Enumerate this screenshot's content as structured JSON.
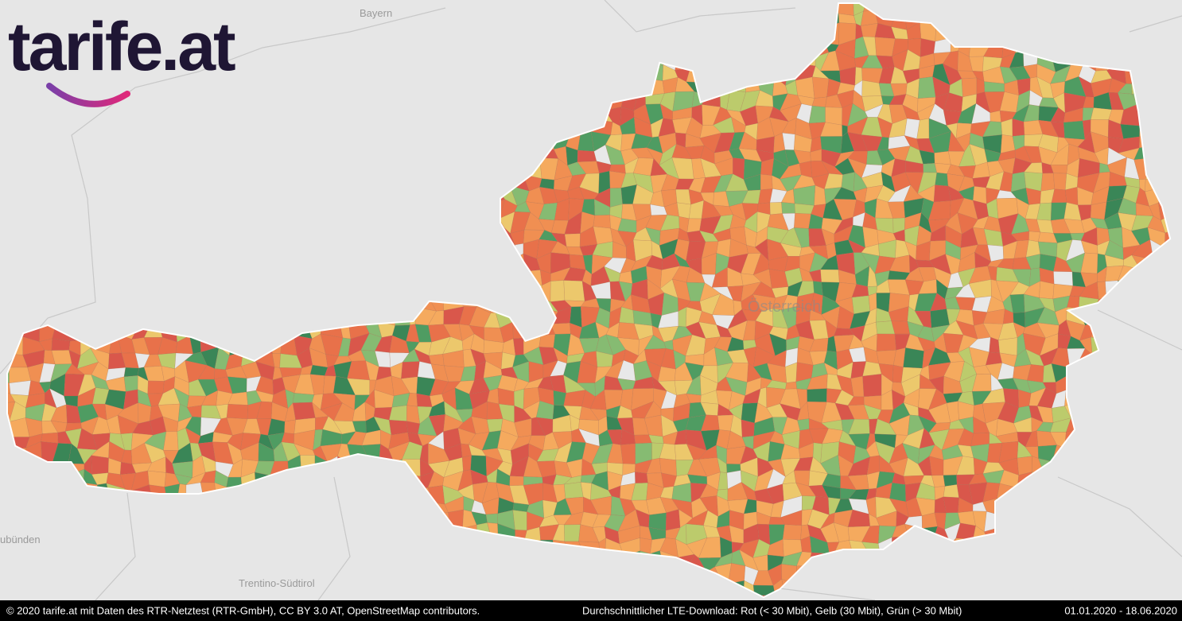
{
  "logo": {
    "text": "tarife.at"
  },
  "map_labels": {
    "bayern": "Bayern",
    "oesterreich": "Österreich",
    "graubuenden": "ubünden",
    "trentino": "Trentino-Südtirol"
  },
  "footer": {
    "credits": "© 2020 tarife.at mit Daten des RTR-Netztest (RTR-GmbH), CC BY 3.0 AT, OpenStreetMap contributors.",
    "legend": "Durchschnittlicher LTE-Download: Rot (< 30 Mbit), Gelb (30 Mbit), Grün (> 30 Mbit)",
    "period": "01.01.2020 - 18.06.2020"
  }
}
